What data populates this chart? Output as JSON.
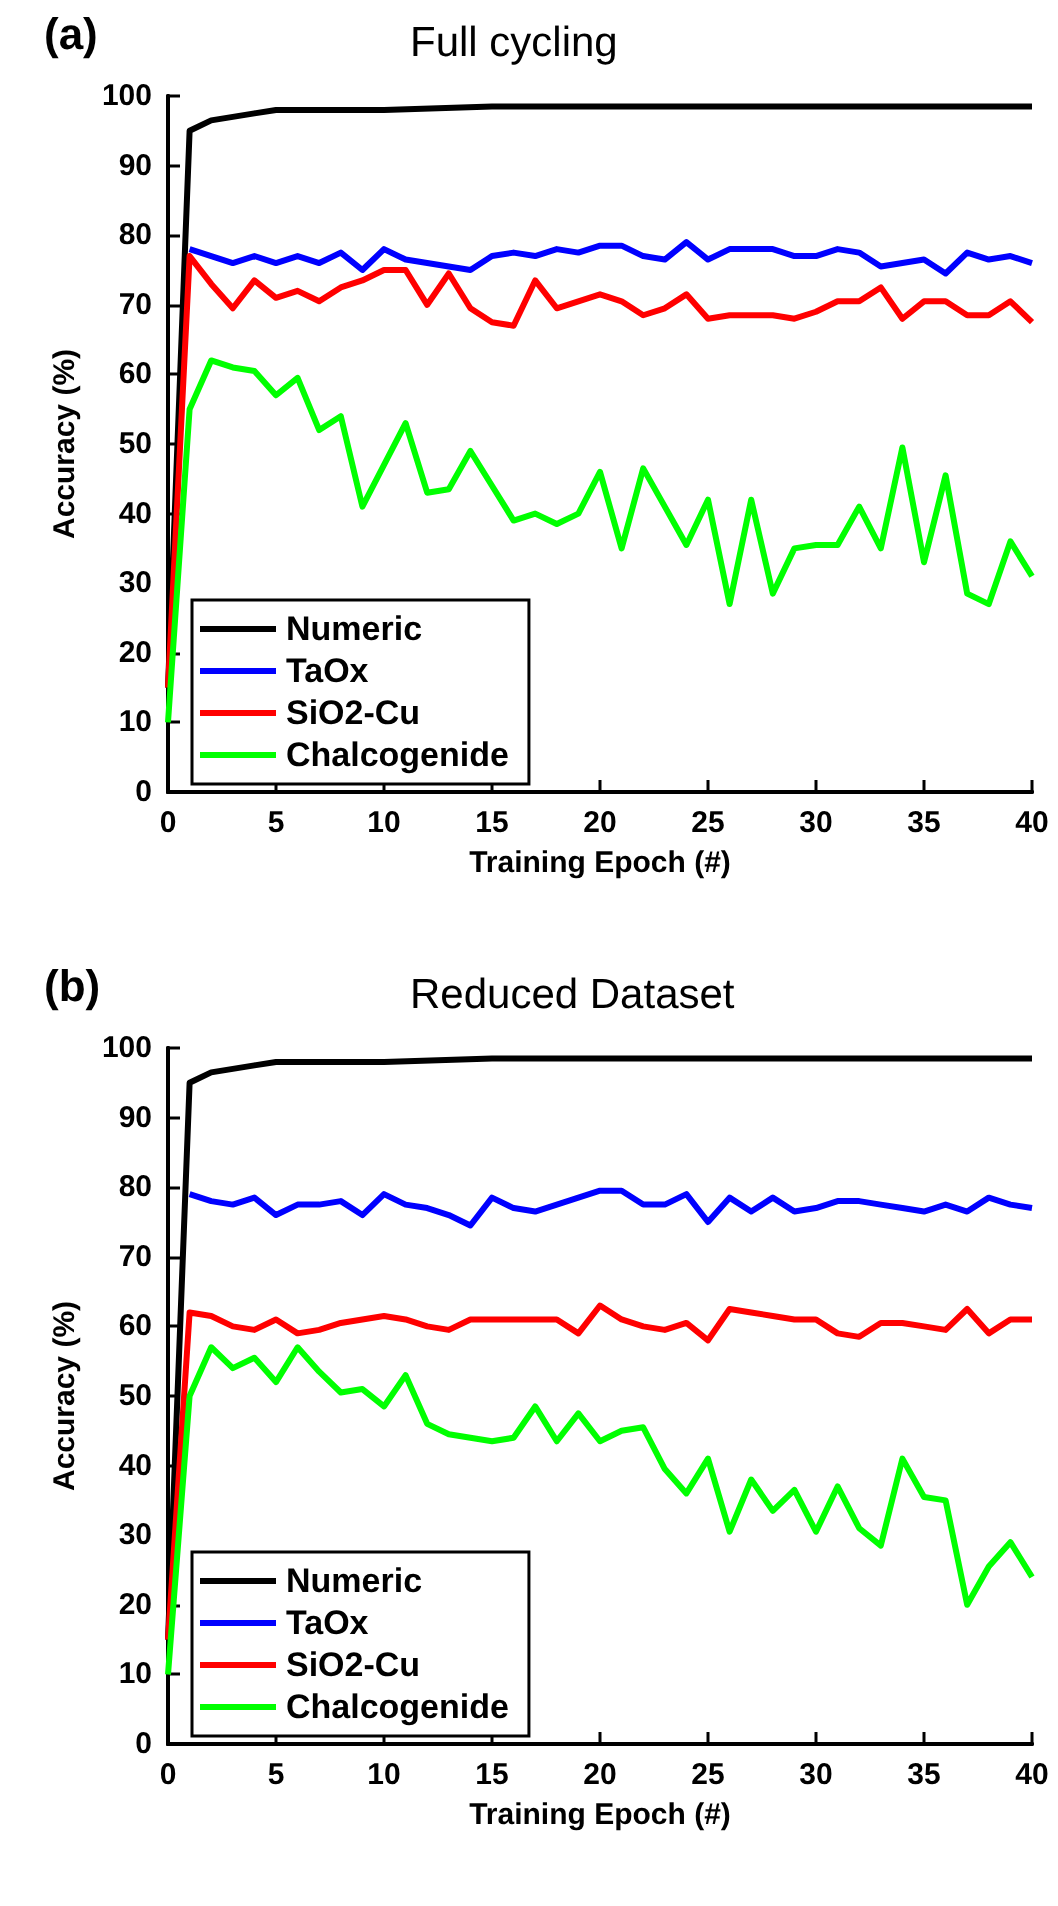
{
  "chart_data": [
    {
      "type": "line",
      "title": "Full cycling",
      "annotations": [
        "(a)"
      ],
      "xlabel": "Training Epoch (#)",
      "ylabel": "Accuracy (%)",
      "xlim": [
        0,
        40
      ],
      "xticks": [
        0,
        5,
        10,
        15,
        20,
        25,
        30,
        35,
        40
      ],
      "ylim": [
        0,
        100
      ],
      "yticks": [
        0,
        10,
        20,
        30,
        40,
        50,
        60,
        70,
        80,
        90,
        100
      ],
      "grid": false,
      "legend": "bottom left",
      "marker": "none",
      "line_style": "solid",
      "series": [
        {
          "name": "Numeric",
          "color": "#000000",
          "x": [
            0,
            1,
            2,
            3,
            4,
            5,
            7,
            10,
            15,
            20,
            30,
            40
          ],
          "values": [
            15,
            95,
            96.5,
            97,
            97.5,
            98,
            98,
            98,
            98.5,
            98.5,
            98.5,
            98.5
          ]
        },
        {
          "name": "TaOx",
          "color": "#0000ff",
          "x": [
            1,
            2,
            3,
            4,
            5,
            6,
            7,
            8,
            9,
            10,
            11,
            12,
            13,
            14,
            15,
            16,
            17,
            18,
            19,
            20,
            21,
            22,
            23,
            24,
            25,
            26,
            27,
            28,
            29,
            30,
            31,
            32,
            33,
            34,
            35,
            36,
            37,
            38,
            39,
            40
          ],
          "values": [
            78,
            77,
            76,
            77,
            76,
            77,
            76,
            77.5,
            75,
            78,
            76.5,
            76,
            75.5,
            75,
            77,
            77.5,
            77,
            78,
            77.5,
            78.5,
            78.5,
            77,
            76.5,
            79,
            76.5,
            78,
            78,
            78,
            77,
            77,
            78,
            77.5,
            75.5,
            76,
            76.5,
            74.5,
            77.5,
            76.5,
            77,
            76
          ]
        },
        {
          "name": "SiO2-Cu",
          "color": "#ff0000",
          "x": [
            0,
            1,
            2,
            3,
            4,
            5,
            6,
            7,
            8,
            9,
            10,
            11,
            12,
            13,
            14,
            15,
            16,
            17,
            18,
            19,
            20,
            21,
            22,
            23,
            24,
            25,
            26,
            27,
            28,
            29,
            30,
            31,
            32,
            33,
            34,
            35,
            36,
            37,
            38,
            39,
            40
          ],
          "values": [
            15,
            77,
            73,
            69.5,
            73.5,
            71,
            72,
            70.5,
            72.5,
            73.5,
            75,
            75,
            70,
            74.5,
            69.5,
            67.5,
            67,
            73.5,
            69.5,
            70.5,
            71.5,
            70.5,
            68.5,
            69.5,
            71.5,
            68,
            68.5,
            68.5,
            68.5,
            68,
            69,
            70.5,
            70.5,
            72.5,
            68,
            70.5,
            70.5,
            68.5,
            68.5,
            70.5,
            67.5
          ]
        },
        {
          "name": "Chalcogenide",
          "color": "#00ff00",
          "x": [
            0,
            1,
            2,
            3,
            4,
            5,
            6,
            7,
            8,
            9,
            10,
            11,
            12,
            13,
            14,
            15,
            16,
            17,
            18,
            19,
            20,
            21,
            22,
            23,
            24,
            25,
            26,
            27,
            28,
            29,
            30,
            31,
            32,
            33,
            34,
            35,
            36,
            37,
            38,
            39,
            40
          ],
          "values": [
            10,
            55,
            62,
            61,
            60.5,
            57,
            59.5,
            52,
            54,
            41,
            47,
            53,
            43,
            43.5,
            49,
            44,
            39,
            40,
            38.5,
            40,
            46,
            35,
            46.5,
            41,
            35.5,
            42,
            27,
            42,
            28.5,
            35,
            35.5,
            35.5,
            41,
            35,
            49.5,
            33,
            45.5,
            28.5,
            27,
            36,
            31
          ]
        }
      ]
    },
    {
      "type": "line",
      "title": "Reduced Dataset",
      "annotations": [
        "(b)"
      ],
      "xlabel": "Training Epoch (#)",
      "ylabel": "Accuracy (%)",
      "xlim": [
        0,
        40
      ],
      "xticks": [
        0,
        5,
        10,
        15,
        20,
        25,
        30,
        35,
        40
      ],
      "ylim": [
        0,
        100
      ],
      "yticks": [
        0,
        10,
        20,
        30,
        40,
        50,
        60,
        70,
        80,
        90,
        100
      ],
      "grid": false,
      "legend": "bottom left",
      "marker": "none",
      "line_style": "solid",
      "series": [
        {
          "name": "Numeric",
          "color": "#000000",
          "x": [
            0,
            1,
            2,
            3,
            4,
            5,
            7,
            10,
            15,
            20,
            30,
            40
          ],
          "values": [
            15,
            95,
            96.5,
            97,
            97.5,
            98,
            98,
            98,
            98.5,
            98.5,
            98.5,
            98.5
          ]
        },
        {
          "name": "TaOx",
          "color": "#0000ff",
          "x": [
            1,
            2,
            3,
            4,
            5,
            6,
            7,
            8,
            9,
            10,
            11,
            12,
            13,
            14,
            15,
            16,
            17,
            18,
            19,
            20,
            21,
            22,
            23,
            24,
            25,
            26,
            27,
            28,
            29,
            30,
            31,
            32,
            33,
            34,
            35,
            36,
            37,
            38,
            39,
            40
          ],
          "values": [
            79,
            78,
            77.5,
            78.5,
            76,
            77.5,
            77.5,
            78,
            76,
            79,
            77.5,
            77,
            76,
            74.5,
            78.5,
            77,
            76.5,
            77.5,
            78.5,
            79.5,
            79.5,
            77.5,
            77.5,
            79,
            75,
            78.5,
            76.5,
            78.5,
            76.5,
            77,
            78,
            78,
            77.5,
            77,
            76.5,
            77.5,
            76.5,
            78.5,
            77.5,
            77
          ]
        },
        {
          "name": "SiO2-Cu",
          "color": "#ff0000",
          "x": [
            0,
            1,
            2,
            3,
            4,
            5,
            6,
            7,
            8,
            9,
            10,
            11,
            12,
            13,
            14,
            15,
            16,
            17,
            18,
            19,
            20,
            21,
            22,
            23,
            24,
            25,
            26,
            27,
            28,
            29,
            30,
            31,
            32,
            33,
            34,
            35,
            36,
            37,
            38,
            39,
            40
          ],
          "values": [
            15,
            62,
            61.5,
            60,
            59.5,
            61,
            59,
            59.5,
            60.5,
            61,
            61.5,
            61,
            60,
            59.5,
            61,
            61,
            61,
            61,
            61,
            59,
            63,
            61,
            60,
            59.5,
            60.5,
            58,
            62.5,
            62,
            61.5,
            61,
            61,
            59,
            58.5,
            60.5,
            60.5,
            60,
            59.5,
            62.5,
            59,
            61,
            61
          ]
        },
        {
          "name": "Chalcogenide",
          "color": "#00ff00",
          "x": [
            0,
            1,
            2,
            3,
            4,
            5,
            6,
            7,
            8,
            9,
            10,
            11,
            12,
            13,
            14,
            15,
            16,
            17,
            18,
            19,
            20,
            21,
            22,
            23,
            24,
            25,
            26,
            27,
            28,
            29,
            30,
            31,
            32,
            33,
            34,
            35,
            36,
            37,
            38,
            39,
            40
          ],
          "values": [
            10,
            50,
            57,
            54,
            55.5,
            52,
            57,
            53.5,
            50.5,
            51,
            48.5,
            53,
            46,
            44.5,
            44,
            43.5,
            44,
            48.5,
            43.5,
            47.5,
            43.5,
            45,
            45.5,
            39.5,
            36,
            41,
            30.5,
            38,
            33.5,
            36.5,
            30.5,
            37,
            31,
            28.5,
            41,
            35.5,
            35,
            20,
            25.5,
            29,
            24
          ]
        }
      ]
    }
  ]
}
